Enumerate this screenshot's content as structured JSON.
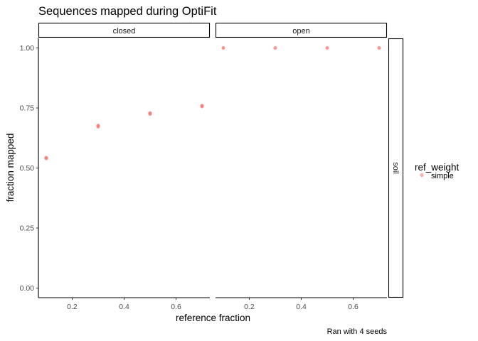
{
  "chart_data": {
    "type": "scatter",
    "title": "Sequences mapped during OptiFit",
    "xlabel": "reference fraction",
    "ylabel": "fraction mapped",
    "caption": "Ran with 4 seeds",
    "xlim": [
      0.07,
      0.73
    ],
    "ylim": [
      -0.04,
      1.04
    ],
    "x_ticks": [
      0.2,
      0.4,
      0.6
    ],
    "x_tick_labels": [
      "0.2",
      "0.4",
      "0.6"
    ],
    "y_ticks": [
      0.0,
      0.25,
      0.5,
      0.75,
      1.0
    ],
    "y_tick_labels": [
      "0.00",
      "0.25",
      "0.50",
      "0.75",
      "1.00"
    ],
    "row_facets": [
      "soil"
    ],
    "col_facets": [
      "closed",
      "open"
    ],
    "grid": false,
    "legend": {
      "title": "ref_weight",
      "position": "right",
      "entries": [
        {
          "label": "simple",
          "color": "#F8766D"
        }
      ]
    },
    "point_color": "#F8766D",
    "panels": [
      {
        "facet": "closed",
        "row": "soil",
        "points": [
          {
            "x": 0.1,
            "y": 0.54
          },
          {
            "x": 0.1,
            "y": 0.543
          },
          {
            "x": 0.3,
            "y": 0.672
          },
          {
            "x": 0.3,
            "y": 0.677
          },
          {
            "x": 0.5,
            "y": 0.725
          },
          {
            "x": 0.5,
            "y": 0.729
          },
          {
            "x": 0.7,
            "y": 0.756
          },
          {
            "x": 0.7,
            "y": 0.76
          }
        ]
      },
      {
        "facet": "open",
        "row": "soil",
        "points": [
          {
            "x": 0.1,
            "y": 1.0
          },
          {
            "x": 0.3,
            "y": 1.0
          },
          {
            "x": 0.5,
            "y": 1.0
          },
          {
            "x": 0.7,
            "y": 1.0
          }
        ]
      }
    ]
  }
}
